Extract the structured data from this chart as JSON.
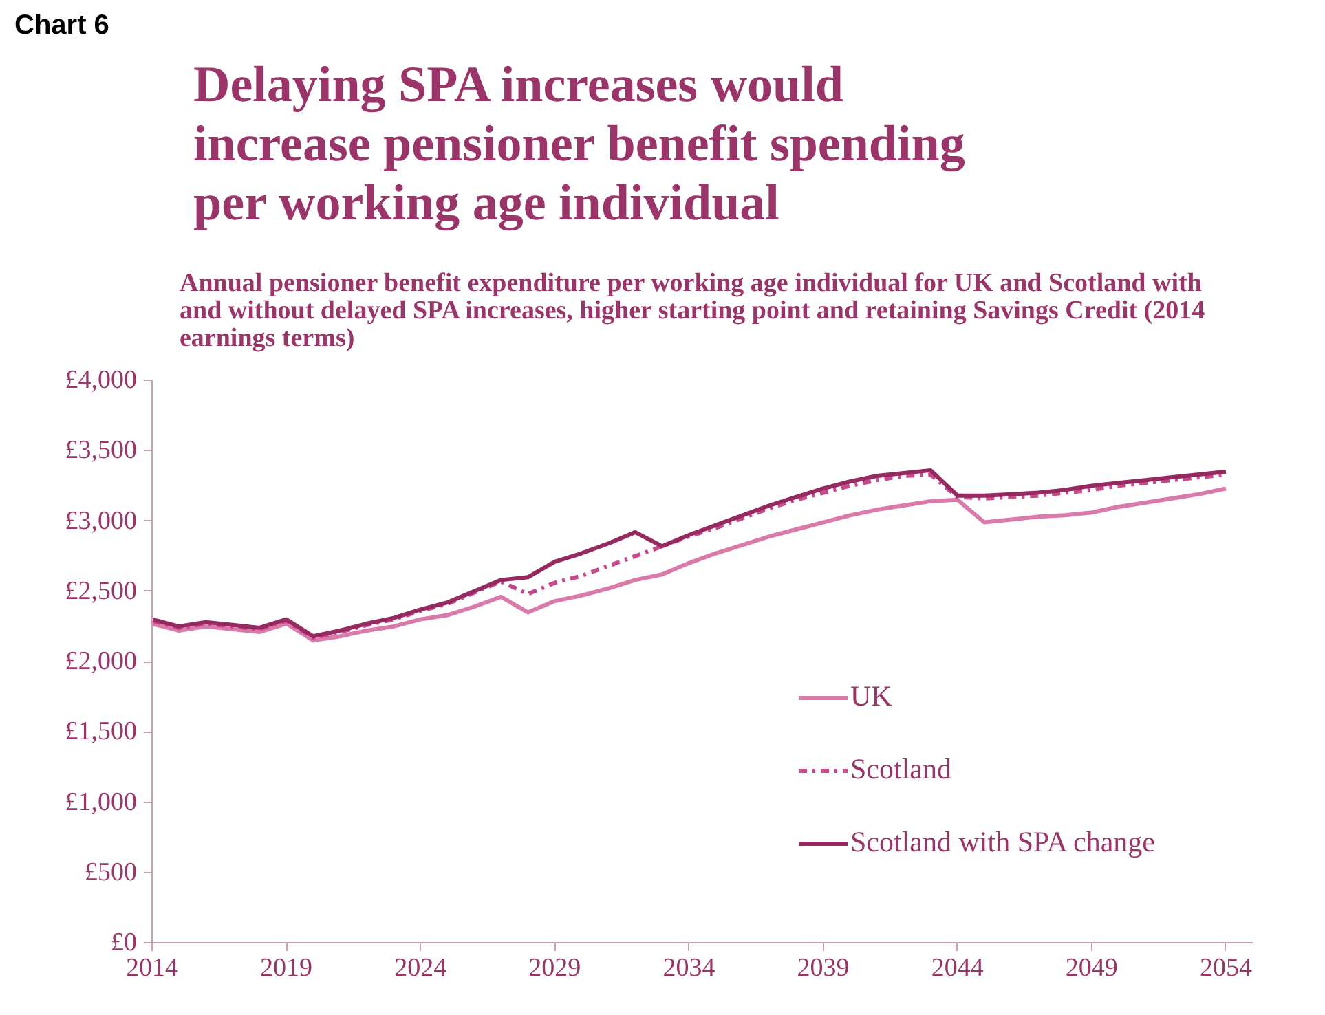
{
  "chart_data": {
    "type": "line",
    "title": "Delaying SPA increases would\nincrease pensioner benefit spending\nper working age individual",
    "subtitle": "Annual pensioner benefit expenditure per working age individual for UK and Scotland with\nand without delayed SPA increases, higher starting point and retaining Savings Credit (2014\nearnings terms)",
    "annotations": [
      "Chart 6"
    ],
    "x": [
      2014,
      2015,
      2016,
      2017,
      2018,
      2019,
      2020,
      2021,
      2022,
      2023,
      2024,
      2025,
      2026,
      2027,
      2028,
      2029,
      2030,
      2031,
      2032,
      2033,
      2034,
      2035,
      2036,
      2037,
      2038,
      2039,
      2040,
      2041,
      2042,
      2043,
      2044,
      2045,
      2046,
      2047,
      2048,
      2049,
      2050,
      2051,
      2052,
      2053,
      2054
    ],
    "series": [
      {
        "name": "UK",
        "color": "#d97aaa",
        "line_style": "solid",
        "values": [
          2270,
          2220,
          2250,
          2230,
          2210,
          2270,
          2150,
          2180,
          2220,
          2250,
          2300,
          2330,
          2390,
          2460,
          2350,
          2430,
          2470,
          2520,
          2580,
          2620,
          2700,
          2770,
          2830,
          2890,
          2940,
          2990,
          3040,
          3080,
          3110,
          3140,
          3150,
          2990,
          3010,
          3030,
          3040,
          3060,
          3100,
          3130,
          3160,
          3190,
          3230
        ]
      },
      {
        "name": "Scotland",
        "color": "#c8488c",
        "line_style": "dashdot",
        "values": [
          2290,
          2240,
          2270,
          2250,
          2230,
          2290,
          2170,
          2210,
          2260,
          2300,
          2360,
          2410,
          2490,
          2570,
          2480,
          2560,
          2610,
          2680,
          2750,
          2820,
          2890,
          2950,
          3020,
          3090,
          3150,
          3200,
          3250,
          3290,
          3320,
          3330,
          3170,
          3160,
          3170,
          3180,
          3200,
          3220,
          3250,
          3270,
          3290,
          3310,
          3330
        ]
      },
      {
        "name": "Scotland with SPA change",
        "color": "#962a60",
        "line_style": "solid",
        "values": [
          2300,
          2250,
          2280,
          2260,
          2240,
          2300,
          2180,
          2220,
          2270,
          2310,
          2370,
          2420,
          2500,
          2580,
          2600,
          2710,
          2770,
          2840,
          2920,
          2820,
          2900,
          2970,
          3040,
          3110,
          3170,
          3230,
          3280,
          3320,
          3340,
          3360,
          3180,
          3180,
          3190,
          3200,
          3220,
          3250,
          3270,
          3290,
          3310,
          3330,
          3350
        ]
      }
    ],
    "xlim": [
      2014,
      2055
    ],
    "xticks": [
      2014,
      2019,
      2024,
      2029,
      2034,
      2039,
      2044,
      2049,
      2054
    ],
    "ylim": [
      0,
      4000
    ],
    "yticks": [
      {
        "value": 0,
        "label": "£0"
      },
      {
        "value": 500,
        "label": "£500"
      },
      {
        "value": 1000,
        "label": "£1,000"
      },
      {
        "value": 1500,
        "label": "£1,500"
      },
      {
        "value": 2000,
        "label": "£2,000"
      },
      {
        "value": 2500,
        "label": "£2,500"
      },
      {
        "value": 3000,
        "label": "£3,000"
      },
      {
        "value": 3500,
        "label": "£3,500"
      },
      {
        "value": 4000,
        "label": "£4,000"
      }
    ],
    "grid": false,
    "legend": "bottom right",
    "marker": "none"
  }
}
